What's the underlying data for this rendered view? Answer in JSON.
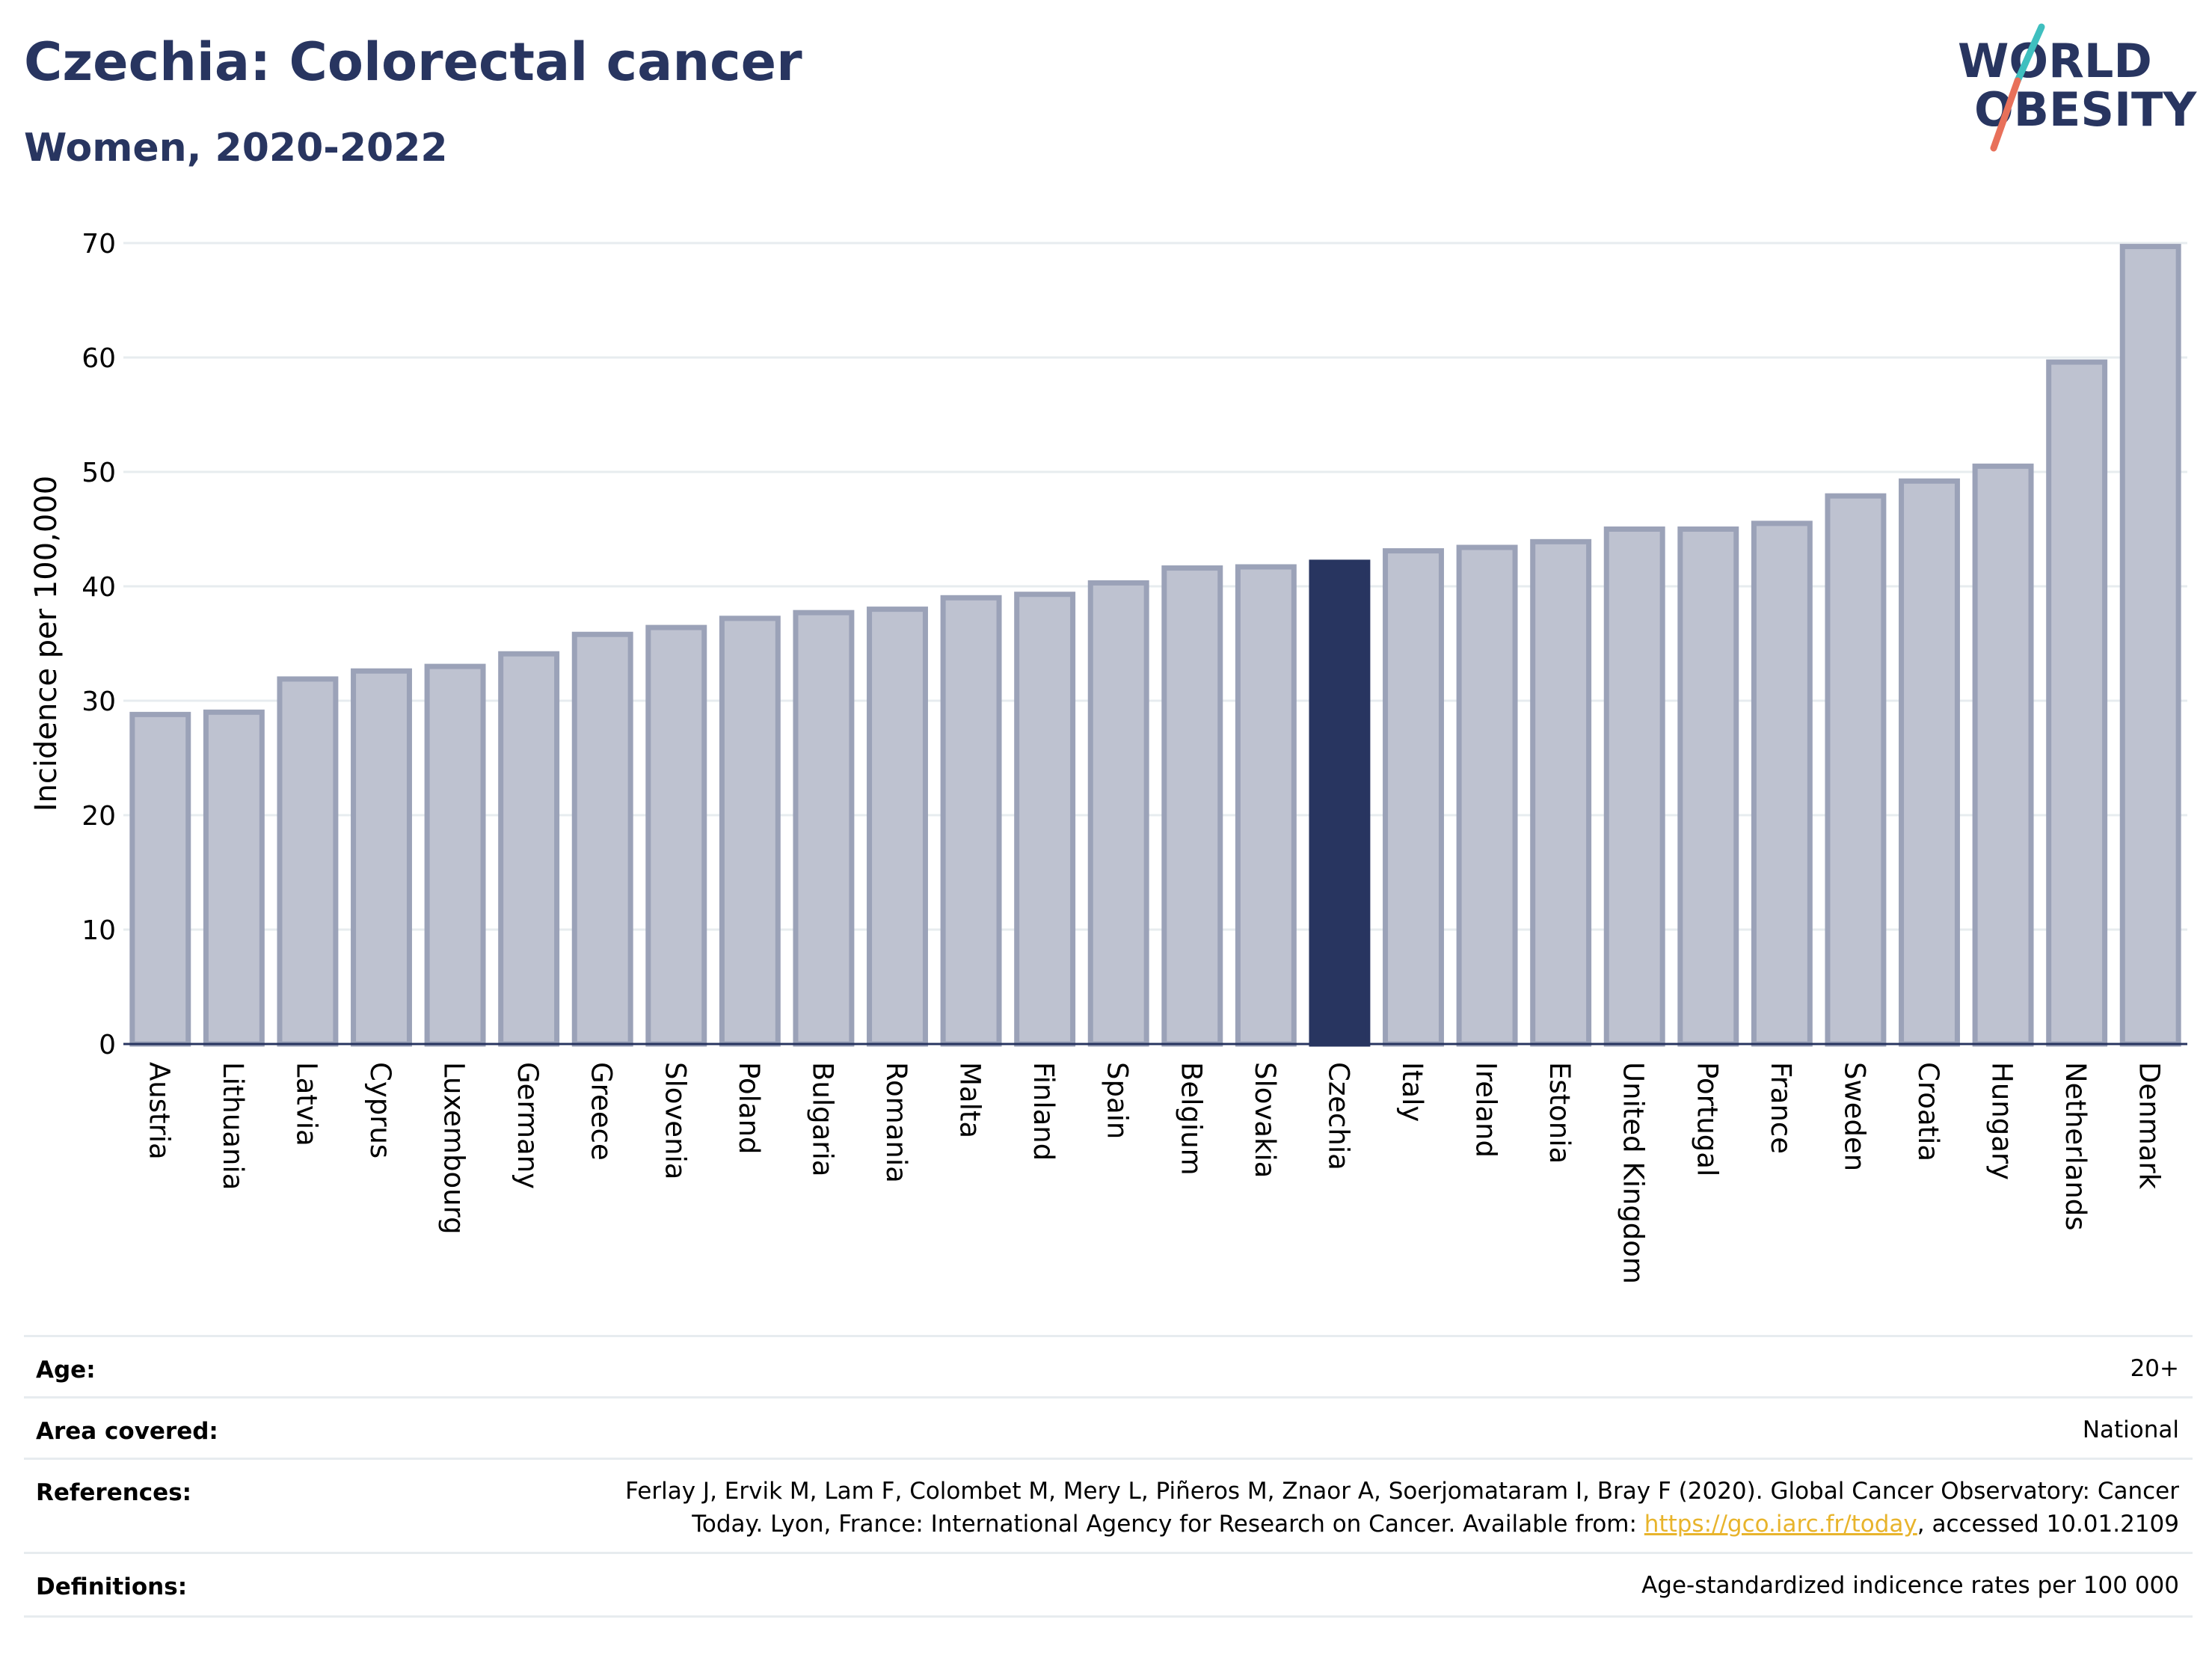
{
  "header": {
    "title": "Czechia: Colorectal cancer",
    "subtitle": "Women, 2020-2022"
  },
  "logo": {
    "line1": "WORLD",
    "line2": "OBESITY",
    "colors": {
      "text": "#283560",
      "slash_teal": "#3fbfbf",
      "slash_coral": "#e8705a"
    }
  },
  "colors": {
    "bar_default": "#bec2d0",
    "bar_default_stroke": "#9ba2b8",
    "bar_highlight": "#283560",
    "grid": "#e7ecef",
    "axis": "#283560"
  },
  "chart_data": {
    "type": "bar",
    "title": "",
    "xlabel": "",
    "ylabel": "Incidence per 100,000",
    "ylim": [
      0,
      70
    ],
    "yticks": [
      0,
      10,
      20,
      30,
      40,
      50,
      60,
      70
    ],
    "grid": true,
    "highlight": "Czechia",
    "categories": [
      "Austria",
      "Lithuania",
      "Latvia",
      "Cyprus",
      "Luxembourg",
      "Germany",
      "Greece",
      "Slovenia",
      "Poland",
      "Bulgaria",
      "Romania",
      "Malta",
      "Finland",
      "Spain",
      "Belgium",
      "Slovakia",
      "Czechia",
      "Italy",
      "Ireland",
      "Estonia",
      "United Kingdom",
      "Portugal",
      "France",
      "Sweden",
      "Croatia",
      "Hungary",
      "Netherlands",
      "Denmark"
    ],
    "values": [
      28.8,
      29.0,
      31.9,
      32.6,
      33.0,
      34.1,
      35.8,
      36.4,
      37.2,
      37.7,
      38.0,
      39.0,
      39.3,
      40.3,
      41.6,
      41.7,
      42.1,
      43.1,
      43.4,
      43.9,
      45.0,
      45.0,
      45.5,
      47.9,
      49.2,
      50.5,
      59.6,
      69.7
    ]
  },
  "info": {
    "age_label": "Age:",
    "age_value": "20+",
    "area_label": "Area covered:",
    "area_value": "National",
    "references_label": "References:",
    "references_line1": "Ferlay J, Ervik M, Lam F, Colombet M, Mery L, Piñeros M, Znaor A, Soerjomataram I, Bray F (2020). Global Cancer Observatory: Cancer",
    "references_line2_pre": "Today. Lyon, France: International Agency for Research on Cancer. Available from: ",
    "references_link": "https://gco.iarc.fr/today",
    "references_line2_post": ", accessed 10.01.2109",
    "definitions_label": "Definitions:",
    "definitions_value": "Age-standardized indicence rates per 100 000"
  }
}
